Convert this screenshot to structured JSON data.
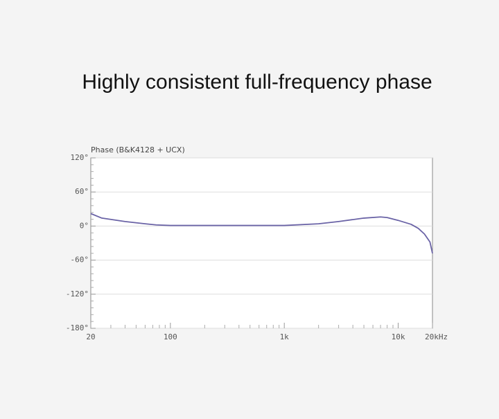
{
  "chart_data": {
    "type": "line",
    "title": "Highly consistent full-frequency phase",
    "ylabel": "Phase  (B&K4128 + UCX)",
    "log_x": true,
    "grid": true,
    "xlim": [
      20,
      20000
    ],
    "xticks": [
      20,
      100,
      {
        "value": 1000,
        "label": "1k"
      },
      {
        "value": 10000,
        "label": "10k"
      },
      {
        "value": 20000,
        "label": "20kHz"
      }
    ],
    "xminorticks": [
      30,
      40,
      50,
      60,
      70,
      80,
      90,
      200,
      300,
      400,
      500,
      600,
      700,
      800,
      900,
      2000,
      3000,
      4000,
      5000,
      6000,
      7000,
      8000,
      9000
    ],
    "ylim": [
      -180,
      120
    ],
    "yticks": [
      {
        "value": 120,
        "label": "120°"
      },
      {
        "value": 60,
        "label": "60°"
      },
      {
        "value": 0,
        "label": "0°"
      },
      {
        "value": -60,
        "label": "-60°"
      },
      {
        "value": -120,
        "label": "-120°"
      },
      {
        "value": -180,
        "label": "-180°"
      }
    ],
    "yminorticks": [
      108,
      96,
      84,
      72,
      48,
      36,
      24,
      12,
      -12,
      -24,
      -36,
      -48,
      -72,
      -84,
      -96,
      -108,
      -132,
      -144,
      -156,
      -168
    ],
    "series": [
      {
        "color": "#6a63a6",
        "x": [
          20,
          25,
          40,
          60,
          75,
          100,
          1000,
          2000,
          3000,
          5000,
          7000,
          8000,
          10000,
          13000,
          15000,
          17000,
          19000,
          20000
        ],
        "values": [
          22,
          14,
          8,
          4,
          2,
          1,
          1,
          4,
          8,
          14,
          16,
          15,
          10,
          3,
          -4,
          -14,
          -28,
          -48
        ]
      }
    ]
  }
}
